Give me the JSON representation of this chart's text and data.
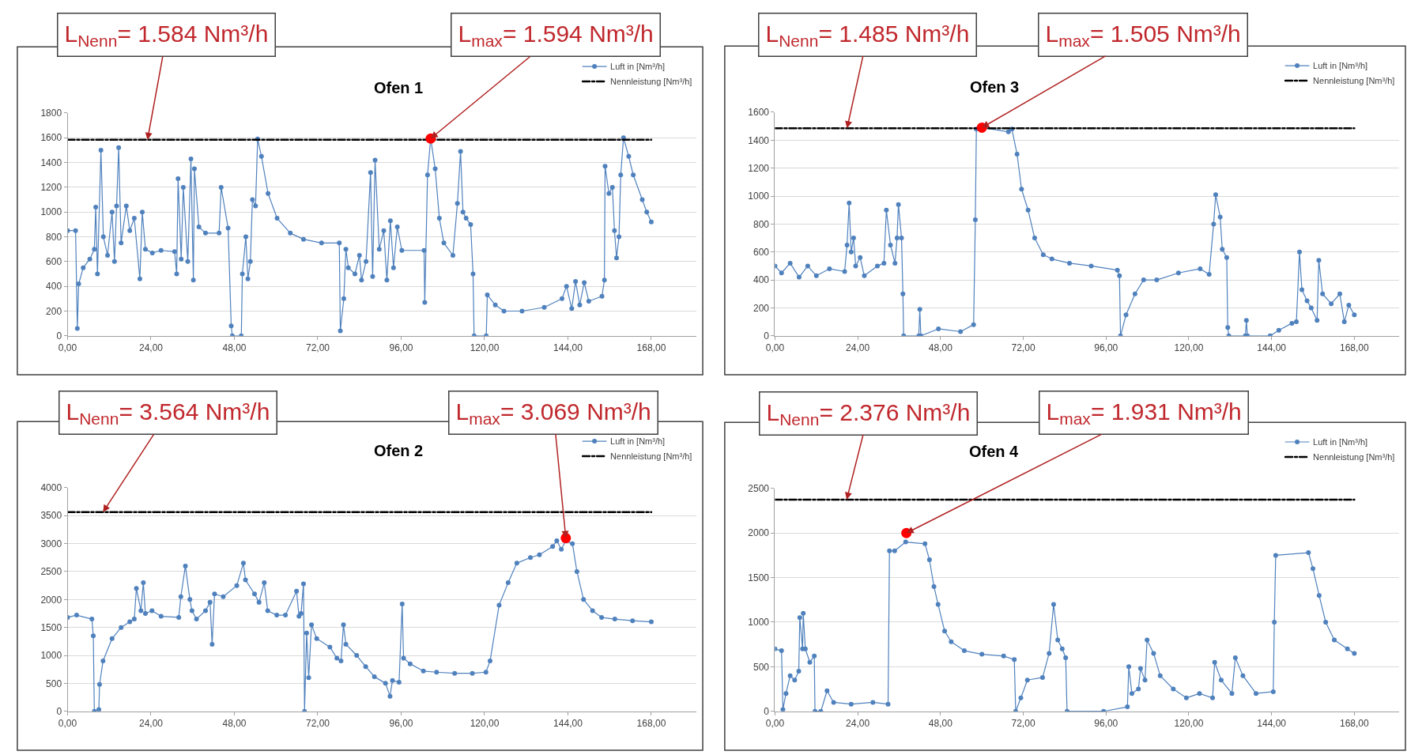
{
  "chart_data": [
    {
      "type": "line",
      "title": "Ofen 1",
      "grid": "y",
      "legend": "top right",
      "xlim": [
        0,
        181
      ],
      "xticks": [
        {
          "value": 0,
          "label": "0,00"
        },
        {
          "value": 24,
          "label": "24,00"
        },
        {
          "value": 48,
          "label": "48,00"
        },
        {
          "value": 72,
          "label": "72,00"
        },
        {
          "value": 96,
          "label": "96,00"
        },
        {
          "value": 120,
          "label": "120,00"
        },
        {
          "value": 144,
          "label": "144,00"
        },
        {
          "value": 168,
          "label": "168,00"
        }
      ],
      "ylim": [
        0,
        1800
      ],
      "yticks": [
        0,
        200,
        400,
        600,
        800,
        1000,
        1200,
        1400,
        1600,
        1800
      ],
      "series": [
        {
          "name": "Luft in [Nm³/h]",
          "color": "#4f81bd",
          "marker": "circle",
          "x": [
            0,
            2.3,
            2.8,
            3.2,
            4.5,
            6.4,
            7.7,
            8.1,
            8.6,
            9.6,
            10.3,
            11.5,
            12.8,
            13.5,
            14.1,
            14.7,
            15.4,
            16.9,
            17.9,
            19.2,
            20.8,
            21.5,
            22.4,
            24.4,
            26.9,
            30.8,
            31.4,
            31.8,
            32.7,
            33.3,
            34.6,
            35.5,
            36.2,
            36.5,
            37.8,
            39.7,
            43.6,
            44.2,
            46.2,
            47.1,
            47.4,
            50,
            50.3,
            51.3,
            51.9,
            52.6,
            53.2,
            54.1,
            54.7,
            55.8,
            57.7,
            60.3,
            64.1,
            67.9,
            73.1,
            78.2,
            78.5,
            79.5,
            80.1,
            80.8,
            82.7,
            84,
            84.6,
            85.9,
            87.2,
            87.8,
            88.5,
            89.7,
            91,
            91.9,
            92.9,
            93.8,
            94.9,
            96.2,
            102.6,
            102.8,
            103.6,
            104.5,
            105.8,
            107,
            108.3,
            110.9,
            112.2,
            113.1,
            113.8,
            114.7,
            116,
            116.7,
            117,
            120.5,
            120.8,
            123.1,
            125.6,
            130.8,
            137.2,
            142.3,
            143.6,
            145.1,
            146.2,
            147.4,
            148.7,
            150,
            153.8,
            154.5,
            154.7,
            155.8,
            156.8,
            157.4,
            158,
            158.7,
            159.2,
            160,
            161.5,
            162.8,
            165.4,
            166.7,
            168
          ],
          "values": [
            850,
            850,
            60,
            420,
            550,
            620,
            700,
            1040,
            500,
            1500,
            800,
            650,
            1000,
            600,
            1050,
            1520,
            750,
            1050,
            850,
            950,
            460,
            1000,
            700,
            670,
            690,
            680,
            500,
            1270,
            620,
            1200,
            600,
            1430,
            450,
            1350,
            880,
            830,
            830,
            1200,
            870,
            80,
            0,
            0,
            500,
            800,
            460,
            600,
            1100,
            1050,
            1590,
            1450,
            1150,
            950,
            830,
            780,
            750,
            750,
            40,
            300,
            700,
            550,
            500,
            650,
            450,
            600,
            1320,
            480,
            1420,
            700,
            850,
            450,
            930,
            550,
            880,
            690,
            690,
            270,
            1300,
            1594,
            1350,
            950,
            750,
            650,
            1070,
            1490,
            1000,
            950,
            900,
            500,
            0,
            0,
            330,
            250,
            200,
            200,
            230,
            300,
            400,
            220,
            440,
            250,
            430,
            280,
            320,
            450,
            1370,
            1150,
            1200,
            850,
            630,
            800,
            1300,
            1600,
            1450,
            1300,
            1100,
            1000,
            920
          ]
        },
        {
          "name": "Nennleistung [Nm³/h]",
          "color": "#000000",
          "marker": "none",
          "line_style": "dashed",
          "x": [
            0,
            168
          ],
          "values": [
            1584,
            1584
          ]
        },
        {
          "type": "scatter",
          "color": "#ff0000",
          "x": [
            104.5
          ],
          "values": [
            1594
          ]
        }
      ],
      "annotations": [
        {
          "text": "L$_{Nenn}$= 1.584 Nm³/h",
          "x": 23,
          "y": 1584
        },
        {
          "text": "L$_{max}$= 1.594 Nm³/h",
          "x": 104.5,
          "y": 1594
        }
      ]
    },
    {
      "type": "line",
      "title": "Ofen 3",
      "grid": "y",
      "legend": "top right",
      "xlim": [
        0,
        181
      ],
      "xticks": [
        {
          "value": 0,
          "label": "0,00"
        },
        {
          "value": 24,
          "label": "24,00"
        },
        {
          "value": 48,
          "label": "48,00"
        },
        {
          "value": 72,
          "label": "72,00"
        },
        {
          "value": 96,
          "label": "96,00"
        },
        {
          "value": 120,
          "label": "120,00"
        },
        {
          "value": 144,
          "label": "144,00"
        },
        {
          "value": 168,
          "label": "168,00"
        }
      ],
      "ylim": [
        0,
        1600
      ],
      "yticks": [
        0,
        200,
        400,
        600,
        800,
        1000,
        1200,
        1400,
        1600
      ],
      "series": [
        {
          "name": "Luft in [Nm³/h]",
          "color": "#4f81bd",
          "marker": "circle",
          "x": [
            0,
            1.9,
            4.4,
            7,
            9.5,
            12,
            15.8,
            20.2,
            20.9,
            21.5,
            22.1,
            22.8,
            23.4,
            24.7,
            25.9,
            29.7,
            31.6,
            32.3,
            33.5,
            34.8,
            35.4,
            35.8,
            36.7,
            37.1,
            37.3,
            41.7,
            42,
            42.3,
            47.4,
            53.8,
            57.6,
            58.1,
            58.4,
            60.1,
            67.7,
            68.7,
            70.2,
            71.5,
            73.4,
            75.3,
            77.8,
            80.3,
            85.4,
            91.7,
            99.3,
            99.9,
            100.2,
            101.8,
            104.4,
            106.9,
            110.7,
            117,
            123.3,
            125.9,
            127.2,
            127.8,
            129.1,
            129.7,
            131,
            131.3,
            131.6,
            136.4,
            136.7,
            137,
            143.6,
            146.1,
            149.9,
            151.2,
            152.1,
            152.8,
            154.3,
            155.5,
            157.2,
            157.7,
            158.8,
            161.3,
            163.8,
            165.1,
            166.4,
            168
          ],
          "values": [
            500,
            450,
            520,
            420,
            500,
            430,
            480,
            460,
            650,
            950,
            600,
            700,
            500,
            560,
            430,
            500,
            520,
            900,
            650,
            520,
            700,
            940,
            700,
            300,
            0,
            0,
            190,
            0,
            50,
            30,
            80,
            830,
            1480,
            1490,
            1460,
            1480,
            1300,
            1050,
            900,
            700,
            580,
            550,
            520,
            500,
            470,
            430,
            0,
            150,
            300,
            400,
            400,
            450,
            480,
            440,
            800,
            1010,
            850,
            620,
            560,
            60,
            0,
            0,
            110,
            0,
            0,
            40,
            90,
            100,
            600,
            330,
            250,
            200,
            110,
            540,
            300,
            230,
            300,
            100,
            220,
            150
          ]
        },
        {
          "name": "Nennleistung [Nm³/h]",
          "color": "#000000",
          "marker": "none",
          "line_style": "dashed",
          "x": [
            0,
            168
          ],
          "values": [
            1485,
            1485
          ]
        },
        {
          "type": "scatter",
          "color": "#ff0000",
          "x": [
            60
          ],
          "values": [
            1490
          ]
        }
      ],
      "annotations": [
        {
          "text": "L$_{Nenn}$= 1.485 Nm³/h",
          "x": 20.9,
          "y": 1485
        },
        {
          "text": "L$_{max}$= 1.505 Nm³/h",
          "x": 60,
          "y": 1490
        }
      ]
    },
    {
      "type": "line",
      "title": "Ofen 2",
      "grid": "y",
      "legend": "top right",
      "xlim": [
        0,
        181
      ],
      "xticks": [
        {
          "value": 0,
          "label": "0,00"
        },
        {
          "value": 24,
          "label": "24,00"
        },
        {
          "value": 48,
          "label": "48,00"
        },
        {
          "value": 72,
          "label": "72,00"
        },
        {
          "value": 96,
          "label": "96,00"
        },
        {
          "value": 120,
          "label": "120,00"
        },
        {
          "value": 144,
          "label": "144,00"
        },
        {
          "value": 168,
          "label": "168,00"
        }
      ],
      "ylim": [
        0,
        4000
      ],
      "yticks": [
        0,
        500,
        1000,
        1500,
        2000,
        2500,
        3000,
        3500,
        4000
      ],
      "series": [
        {
          "name": "Luft in [Nm³/h]",
          "color": "#4f81bd",
          "marker": "circle",
          "x": [
            0,
            2.6,
            7,
            7.4,
            7.7,
            9,
            9.2,
            10.2,
            12.8,
            15.4,
            17.9,
            19.2,
            19.8,
            21.1,
            21.8,
            22.4,
            24.3,
            26.9,
            32,
            32.6,
            33.9,
            35.2,
            35.8,
            37.1,
            39.7,
            41,
            41.6,
            42.3,
            44.8,
            48.7,
            50.6,
            51.2,
            53.8,
            55.1,
            56.6,
            57.6,
            60.2,
            62.7,
            65.9,
            66.6,
            67.2,
            67.9,
            68.2,
            68.8,
            69.4,
            70.2,
            71.7,
            75.5,
            77.5,
            78.7,
            79.4,
            80.1,
            83.2,
            85.8,
            88.3,
            91.5,
            92.8,
            93.5,
            95.4,
            96.3,
            96.7,
            98.6,
            102.4,
            106.2,
            111.4,
            116.5,
            120.4,
            121.6,
            124.2,
            126.8,
            129.3,
            133.2,
            135.8,
            139.6,
            140.8,
            142.1,
            143.4,
            145.3,
            146.6,
            148.5,
            151.1,
            153.7,
            157.5,
            162.6,
            168
          ],
          "values": [
            1680,
            1720,
            1650,
            1350,
            0,
            30,
            480,
            900,
            1300,
            1500,
            1600,
            1650,
            2200,
            1800,
            2300,
            1750,
            1800,
            1700,
            1680,
            2050,
            2600,
            2000,
            1800,
            1650,
            1800,
            1950,
            1200,
            2100,
            2050,
            2250,
            2650,
            2350,
            2100,
            1950,
            2300,
            1800,
            1720,
            1720,
            2150,
            1700,
            1750,
            2280,
            0,
            1400,
            600,
            1550,
            1300,
            1150,
            950,
            900,
            1550,
            1200,
            1000,
            800,
            620,
            500,
            270,
            550,
            520,
            1920,
            950,
            850,
            720,
            700,
            680,
            680,
            700,
            900,
            1900,
            2300,
            2650,
            2750,
            2800,
            2950,
            3050,
            2900,
            3050,
            3000,
            2500,
            2000,
            1800,
            1680,
            1650,
            1620,
            1600
          ]
        },
        {
          "name": "Nennleistung [Nm³/h]",
          "color": "#000000",
          "marker": "none",
          "line_style": "dashed",
          "x": [
            0,
            168
          ],
          "values": [
            3564,
            3564
          ]
        },
        {
          "type": "scatter",
          "color": "#ff0000",
          "x": [
            143.4
          ],
          "values": [
            3100
          ]
        }
      ],
      "annotations": [
        {
          "text": "L$_{Nenn}$= 3.564 Nm³/h",
          "x": 10.2,
          "y": 3564
        },
        {
          "text": "L$_{max}$= 3.069 Nm³/h",
          "x": 143.4,
          "y": 3100
        }
      ]
    },
    {
      "type": "line",
      "title": "Ofen 4",
      "grid": "y",
      "legend": "top right",
      "xlim": [
        0,
        181
      ],
      "xticks": [
        {
          "value": 0,
          "label": "0,00"
        },
        {
          "value": 24,
          "label": "24,00"
        },
        {
          "value": 48,
          "label": "48,00"
        },
        {
          "value": 72,
          "label": "72,00"
        },
        {
          "value": 96,
          "label": "96,00"
        },
        {
          "value": 120,
          "label": "120,00"
        },
        {
          "value": 144,
          "label": "144,00"
        },
        {
          "value": 168,
          "label": "168,00"
        }
      ],
      "ylim": [
        0,
        2500
      ],
      "yticks": [
        0,
        500,
        1000,
        1500,
        2000,
        2500
      ],
      "series": [
        {
          "name": "Luft in [Nm³/h]",
          "color": "#4f81bd",
          "marker": "circle",
          "x": [
            0,
            1.9,
            2.3,
            3.2,
            4.4,
            5.7,
            6.9,
            7.2,
            8,
            8.2,
            8.8,
            10.1,
            11.4,
            11.6,
            13.3,
            15.1,
            17,
            22.1,
            28.4,
            32.8,
            33.2,
            34.7,
            37.9,
            43.5,
            44.8,
            46.1,
            47.3,
            49.2,
            51.1,
            54.9,
            60,
            66.3,
            69.4,
            69.8,
            71.3,
            73.2,
            77.6,
            79.5,
            80.8,
            82,
            83.3,
            84.3,
            84.7,
            95.3,
            102.2,
            102.6,
            103.5,
            105.4,
            106,
            107.3,
            107.9,
            109.8,
            111.7,
            115.5,
            119.3,
            123.1,
            126.9,
            127.5,
            129.4,
            132.5,
            133.5,
            135.7,
            139.5,
            144.5,
            144.8,
            145.2,
            154.7,
            156,
            157.8,
            159.7,
            162.2,
            166,
            168
          ],
          "values": [
            700,
            680,
            20,
            200,
            400,
            350,
            450,
            1050,
            700,
            1100,
            700,
            550,
            620,
            0,
            0,
            230,
            100,
            80,
            100,
            80,
            1800,
            1800,
            1900,
            1880,
            1700,
            1400,
            1200,
            900,
            780,
            680,
            640,
            620,
            580,
            0,
            150,
            350,
            380,
            650,
            1200,
            800,
            700,
            600,
            0,
            0,
            50,
            500,
            200,
            250,
            480,
            350,
            800,
            650,
            400,
            250,
            150,
            200,
            150,
            550,
            350,
            200,
            600,
            400,
            200,
            220,
            1000,
            1750,
            1780,
            1600,
            1300,
            1000,
            800,
            700,
            650
          ]
        },
        {
          "name": "Nennleistung [Nm³/h]",
          "color": "#000000",
          "marker": "none",
          "line_style": "dashed",
          "x": [
            0,
            168
          ],
          "values": [
            2376,
            2376
          ]
        },
        {
          "type": "scatter",
          "color": "#ff0000",
          "x": [
            38.1
          ],
          "values": [
            2000
          ]
        }
      ],
      "annotations": [
        {
          "text": "L$_{Nenn}$= 2.376 Nm³/h",
          "x": 20.8,
          "y": 2376
        },
        {
          "text": "L$_{max}$= 1.931 Nm³/h",
          "x": 38.1,
          "y": 2000
        }
      ]
    }
  ]
}
